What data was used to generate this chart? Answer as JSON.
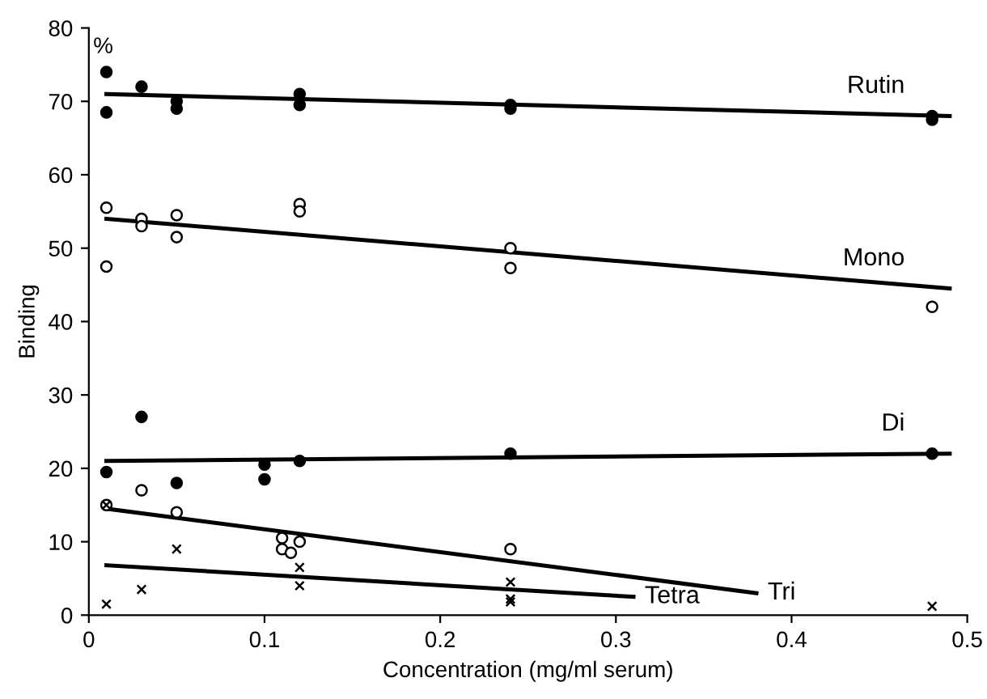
{
  "chart_data": {
    "type": "scatter",
    "xlabel": "Concentration (mg/ml serum)",
    "ylabel": "Binding",
    "xlim": [
      0,
      0.5
    ],
    "ylim": [
      0,
      80
    ],
    "xticks": [
      0,
      0.1,
      0.2,
      0.3,
      0.4,
      0.5
    ],
    "yticks": [
      0,
      10,
      20,
      30,
      40,
      50,
      60,
      70,
      80
    ],
    "grid": false,
    "legend": false,
    "series": [
      {
        "marker": "circle",
        "color": "#000000",
        "x": [
          0.01,
          0.01,
          0.03,
          0.05,
          0.05,
          0.12,
          0.12,
          0.24,
          0.24,
          0.48,
          0.48
        ],
        "values": [
          74,
          68.5,
          72,
          70,
          69,
          71,
          69.5,
          69.5,
          69,
          68,
          67.5
        ]
      },
      {
        "type": "line",
        "name": "Rutin",
        "marker": "none",
        "color": "#000000",
        "x": [
          0.01,
          0.49
        ],
        "values": [
          71,
          68
        ]
      },
      {
        "marker": "circle",
        "color": "#ffffff",
        "x": [
          0.01,
          0.01,
          0.03,
          0.03,
          0.05,
          0.05,
          0.12,
          0.12,
          0.24,
          0.24,
          0.48
        ],
        "values": [
          55.5,
          47.5,
          54,
          53,
          54.5,
          51.5,
          56,
          55,
          50,
          47.3,
          42
        ]
      },
      {
        "type": "line",
        "name": "Mono",
        "marker": "none",
        "color": "#000000",
        "x": [
          0.01,
          0.49
        ],
        "values": [
          54,
          44.5
        ]
      },
      {
        "marker": "circle",
        "color": "#000000",
        "x": [
          0.01,
          0.03,
          0.05,
          0.1,
          0.1,
          0.12,
          0.24,
          0.48
        ],
        "values": [
          19.5,
          27,
          18,
          20.5,
          18.5,
          21,
          22,
          22
        ]
      },
      {
        "type": "line",
        "name": "Di",
        "marker": "none",
        "color": "#000000",
        "x": [
          0.01,
          0.49
        ],
        "values": [
          21,
          22
        ]
      },
      {
        "marker": "circle",
        "color": "#ffffff",
        "x": [
          0.01,
          0.03,
          0.05,
          0.11,
          0.11,
          0.12,
          0.115,
          0.24
        ],
        "values": [
          15,
          17,
          14,
          10.5,
          9,
          10,
          8.5,
          9
        ]
      },
      {
        "type": "line",
        "name": "Tri",
        "marker": "none",
        "color": "#000000",
        "x": [
          0.01,
          0.38
        ],
        "values": [
          14.5,
          3
        ]
      },
      {
        "marker": "cross",
        "color": "#000000",
        "x": [
          0.01,
          0.01,
          0.03,
          0.05,
          0.12,
          0.12,
          0.24,
          0.24,
          0.24,
          0.48
        ],
        "values": [
          15,
          1.5,
          3.5,
          9,
          6.5,
          4,
          4.5,
          2.2,
          1.8,
          1.2
        ]
      },
      {
        "type": "line",
        "name": "Tetra",
        "marker": "none",
        "color": "#000000",
        "x": [
          0.01,
          0.31
        ],
        "values": [
          6.8,
          2.5
        ]
      }
    ],
    "annotations": [
      "%"
    ]
  }
}
